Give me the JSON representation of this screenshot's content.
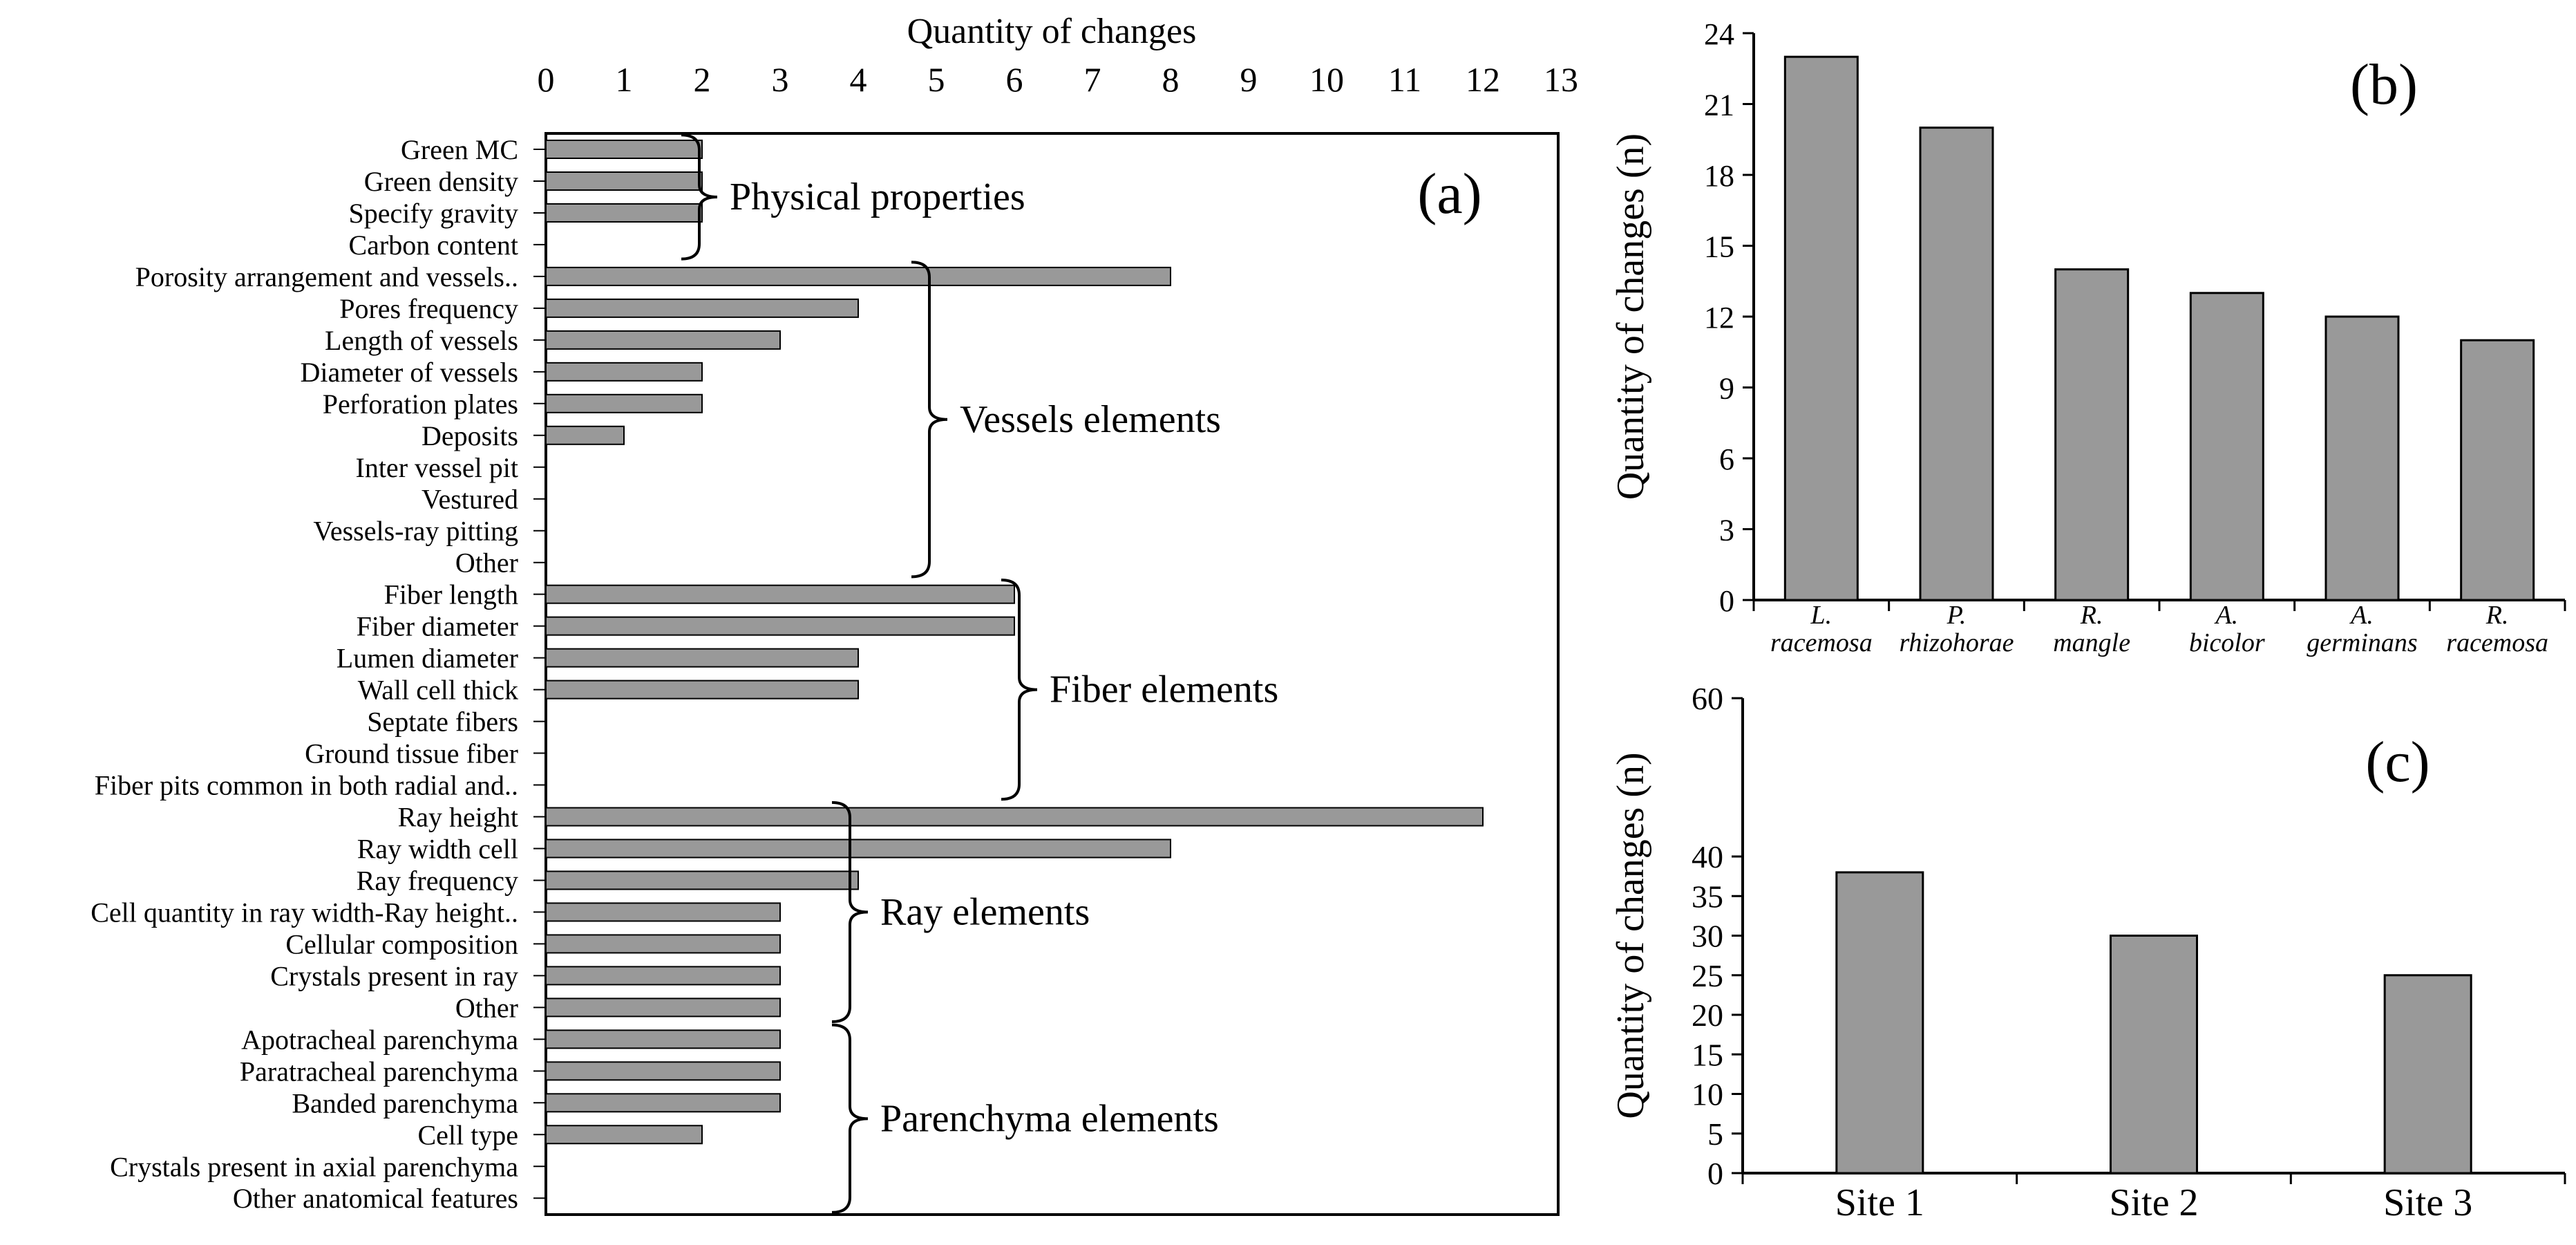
{
  "colors": {
    "bar": "#999999",
    "bar_stroke": "#000000",
    "axis": "#000000"
  },
  "chart_data": [
    {
      "panel": "(a)",
      "type": "bar",
      "orientation": "horizontal",
      "title": "Quantity of changes",
      "xlim": [
        0,
        13
      ],
      "xticks": [
        "0",
        "1",
        "2",
        "3",
        "4",
        "5",
        "6",
        "7",
        "8",
        "9",
        "10",
        "11",
        "12",
        "13"
      ],
      "categories": [
        "Green MC",
        "Green density",
        "Specify gravity",
        "Carbon content",
        "Porosity arrangement and vessels..",
        "Pores frequency",
        "Length of vessels",
        "Diameter of vessels",
        "Perforation plates",
        "Deposits",
        "Inter vessel pit",
        "Vestured",
        "Vessels-ray pitting",
        "Other",
        "Fiber length",
        "Fiber diameter",
        "Lumen diameter",
        "Wall cell thick",
        "Septate fibers",
        "Ground tissue fiber",
        "Fiber pits common in both radial and..",
        "Ray height",
        "Ray width cell",
        "Ray frequency",
        "Cell quantity in ray width-Ray height..",
        "Cellular composition",
        "Crystals present in ray",
        "Other",
        "Apotracheal parenchyma",
        "Paratracheal parenchyma",
        "Banded parenchyma",
        "Cell type",
        "Crystals present in axial parenchyma",
        "Other anatomical features"
      ],
      "values": [
        2,
        2,
        2,
        0,
        8,
        4,
        3,
        2,
        2,
        1,
        0,
        0,
        0,
        0,
        6,
        6,
        4,
        4,
        0,
        0,
        0,
        12,
        8,
        4,
        3,
        3,
        3,
        3,
        3,
        3,
        3,
        2,
        0,
        0
      ],
      "groups": [
        {
          "label": "Physical properties",
          "first": 0,
          "last": 3
        },
        {
          "label": "Vessels elements",
          "first": 4,
          "last": 13
        },
        {
          "label": "Fiber elements",
          "first": 14,
          "last": 20
        },
        {
          "label": "Ray elements",
          "first": 21,
          "last": 27
        },
        {
          "label": "Parenchyma elements",
          "first": 28,
          "last": 33
        }
      ]
    },
    {
      "panel": "(b)",
      "type": "bar",
      "ylabel": "Quantity of changes (n)",
      "ylim": [
        0,
        24
      ],
      "yticks": [
        "0",
        "3",
        "6",
        "9",
        "12",
        "15",
        "18",
        "21",
        "24"
      ],
      "categories": [
        [
          "L.",
          "racemosa"
        ],
        [
          "P.",
          "rhizohorae"
        ],
        [
          "R.",
          "mangle"
        ],
        [
          "A.",
          "bicolor"
        ],
        [
          "A.",
          "germinans"
        ],
        [
          "R.",
          "racemosa"
        ]
      ],
      "values": [
        23,
        20,
        14,
        13,
        12,
        11
      ]
    },
    {
      "panel": "(c)",
      "type": "bar",
      "ylabel": "Quantity of changes (n)",
      "ylim": [
        0,
        60
      ],
      "yticks": [
        "0",
        "5",
        "10",
        "15",
        "20",
        "25",
        "30",
        "35",
        "40",
        "60"
      ],
      "categories": [
        "Site 1",
        "Site 2",
        "Site 3"
      ],
      "values": [
        38,
        30,
        25
      ]
    }
  ]
}
